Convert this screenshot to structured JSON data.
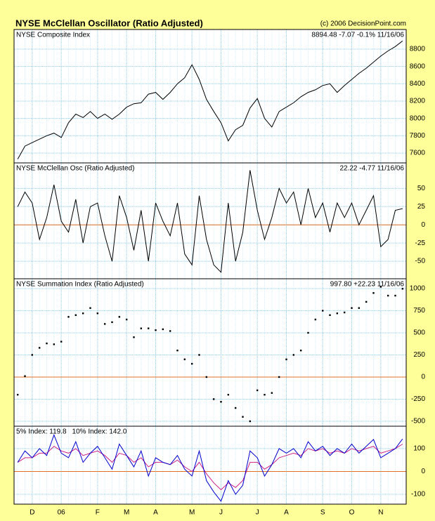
{
  "title": "NYSE McClellan Oscillator (Ratio Adjusted)",
  "credit": "(c) 2006 DecisionPoint.com",
  "chart_data": [
    {
      "type": "line",
      "title": "NYSE Composite Index",
      "annotation": "8894.48  -7.07  -0.1%  11/16/06",
      "color": "#000000",
      "values": [
        7530,
        7680,
        7720,
        7760,
        7800,
        7830,
        7780,
        7950,
        8050,
        8010,
        8080,
        8000,
        8050,
        7990,
        8050,
        8130,
        8170,
        8180,
        8280,
        8300,
        8220,
        8300,
        8400,
        8470,
        8620,
        8450,
        8220,
        8080,
        7950,
        7740,
        7870,
        7920,
        8120,
        8230,
        8000,
        7900,
        8080,
        8130,
        8180,
        8250,
        8300,
        8330,
        8380,
        8400,
        8300,
        8380,
        8450,
        8520,
        8580,
        8650,
        8720,
        8780,
        8830,
        8894.48
      ],
      "ylim": [
        7486,
        9027
      ],
      "yticks": [
        7600,
        7800,
        8000,
        8200,
        8400,
        8600,
        8800
      ],
      "grid": true
    },
    {
      "type": "line",
      "title": "NYSE McClellan Osc (Ratio Adjusted)",
      "annotation": "22.22  -4.77  11/16/06",
      "color": "#000000",
      "values": [
        25,
        45,
        30,
        -20,
        10,
        55,
        5,
        -10,
        35,
        -25,
        25,
        30,
        -15,
        -50,
        40,
        10,
        -35,
        20,
        -50,
        30,
        5,
        -15,
        30,
        -40,
        -55,
        40,
        -20,
        -55,
        -65,
        30,
        -50,
        -10,
        75,
        20,
        -20,
        10,
        50,
        30,
        45,
        0,
        50,
        10,
        30,
        -10,
        30,
        10,
        30,
        0,
        20,
        40,
        -30,
        -20,
        20,
        22.22
      ],
      "ylim": [
        -74,
        85
      ],
      "yticks": [
        -50,
        -25,
        0,
        25,
        50
      ],
      "grid": true,
      "reference_line": 0,
      "reference_color": "#e07020"
    },
    {
      "type": "dot",
      "title": "NYSE Summation Index (Ratio Adjusted)",
      "annotation": "997.80  +22.23  11/16/06",
      "color": "#000000",
      "values": [
        -200,
        10,
        250,
        330,
        380,
        370,
        400,
        680,
        700,
        720,
        780,
        720,
        600,
        620,
        680,
        650,
        450,
        550,
        550,
        530,
        540,
        520,
        300,
        200,
        150,
        250,
        0,
        -250,
        -280,
        -200,
        -350,
        -450,
        -500,
        -150,
        -200,
        -180,
        0,
        200,
        250,
        300,
        500,
        650,
        750,
        700,
        720,
        730,
        780,
        780,
        850,
        950,
        1020,
        920,
        920,
        997.8
      ],
      "ylim": [
        -556,
        1111
      ],
      "yticks": [
        -500,
        -250,
        0,
        250,
        500,
        750,
        1000
      ],
      "grid": true,
      "reference_line": 0,
      "reference_color": "#e07020"
    },
    {
      "type": "line",
      "series": [
        {
          "name": "5% Index: 119.8",
          "color": "#cc2288",
          "values": [
            40,
            60,
            60,
            80,
            80,
            110,
            90,
            80,
            100,
            70,
            80,
            90,
            70,
            40,
            80,
            70,
            40,
            60,
            20,
            40,
            40,
            30,
            50,
            20,
            0,
            40,
            -10,
            -50,
            -80,
            -50,
            -70,
            -40,
            40,
            40,
            10,
            30,
            60,
            70,
            80,
            70,
            100,
            90,
            100,
            80,
            90,
            80,
            100,
            90,
            100,
            110,
            80,
            90,
            100,
            119.8
          ]
        },
        {
          "name": "10% Index: 142.0",
          "color": "#0000cc",
          "values": [
            40,
            90,
            60,
            100,
            70,
            160,
            80,
            60,
            130,
            40,
            80,
            110,
            60,
            10,
            120,
            70,
            20,
            90,
            -20,
            60,
            40,
            30,
            70,
            10,
            -20,
            90,
            -40,
            -90,
            -130,
            -40,
            -100,
            -60,
            90,
            60,
            -20,
            30,
            100,
            80,
            100,
            60,
            130,
            90,
            110,
            70,
            100,
            80,
            120,
            80,
            110,
            140,
            60,
            80,
            100,
            142.0
          ]
        }
      ],
      "categories": [
        null,
        null,
        "D",
        null,
        null,
        null,
        "06",
        null,
        null,
        null,
        null,
        "F",
        null,
        null,
        null,
        "M",
        null,
        null,
        null,
        "A",
        null,
        null,
        null,
        null,
        "M",
        null,
        null,
        null,
        "J",
        null,
        null,
        null,
        null,
        "J",
        null,
        null,
        null,
        "A",
        null,
        null,
        null,
        null,
        "S",
        null,
        null,
        null,
        "O",
        null,
        null,
        null,
        "N",
        null,
        null,
        null
      ],
      "ylim": [
        -143,
        198
      ],
      "yticks": [
        -100,
        0,
        100
      ],
      "grid": true,
      "reference_line": 0,
      "reference_color": "#e07020"
    }
  ]
}
